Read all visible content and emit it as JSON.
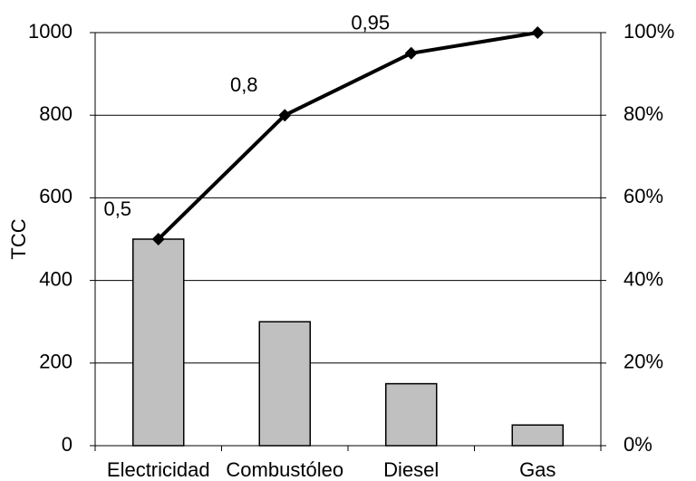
{
  "chart_data": {
    "type": "bar",
    "y_label": "TCC",
    "categories": [
      "Electricidad",
      "Combustóleo",
      "Diesel",
      "Gas"
    ],
    "series": [
      {
        "type": "bar",
        "color": "#c0c0c0",
        "values": [
          500,
          300,
          150,
          50
        ]
      },
      {
        "type": "line",
        "axis": "y2",
        "color": "#000000",
        "values": [
          0.5,
          0.8,
          0.95,
          1
        ],
        "value_labels": [
          "0,5",
          "0,8",
          "0,95",
          null
        ]
      }
    ],
    "ylim": [
      0,
      1000
    ],
    "yticks": [
      0,
      200,
      400,
      600,
      800,
      1000
    ],
    "y2lim": [
      0,
      1
    ],
    "y2ticks": [
      {
        "value": 0,
        "label": "0%"
      },
      {
        "value": 0.2,
        "label": "20%"
      },
      {
        "value": 0.4,
        "label": "40%"
      },
      {
        "value": 0.6,
        "label": "60%"
      },
      {
        "value": 0.8,
        "label": "80%"
      },
      {
        "value": 1,
        "label": "100%"
      }
    ],
    "grid": true
  }
}
